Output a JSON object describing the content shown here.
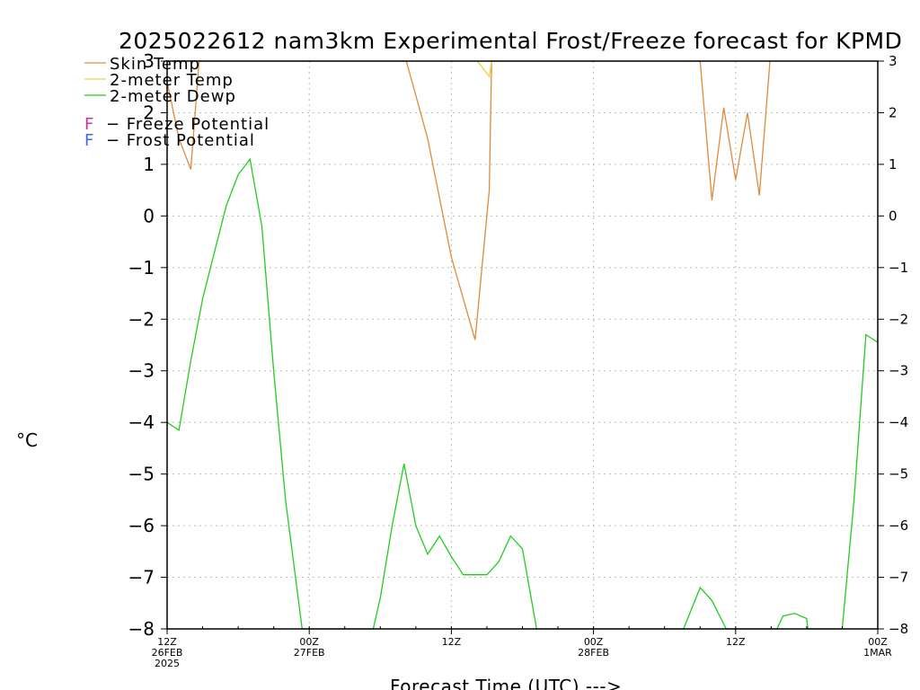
{
  "chart_data": {
    "type": "line",
    "title": "2025022612 nam3km Experimental Frost/Freeze forecast for KPMD",
    "xlabel": "Forecast Time (UTC) --->",
    "ylabel": "°C",
    "xlim": [
      0,
      60
    ],
    "ylim": [
      -8,
      3
    ],
    "yticks": [
      3,
      2,
      1,
      0,
      -1,
      -2,
      -3,
      -4,
      -5,
      -6,
      -7,
      -8
    ],
    "ytick_labels": [
      "3",
      "2",
      "1",
      "0",
      "−1",
      "−2",
      "−3",
      "−4",
      "−5",
      "−6",
      "−7",
      "−8"
    ],
    "grid": true,
    "legend_position": "top-left",
    "xticks": [
      {
        "x": 0,
        "lines": [
          "12Z",
          "26FEB",
          "2025"
        ]
      },
      {
        "x": 12,
        "lines": [
          "00Z",
          "27FEB"
        ]
      },
      {
        "x": 24,
        "lines": [
          "12Z"
        ]
      },
      {
        "x": 36,
        "lines": [
          "00Z",
          "28FEB"
        ]
      },
      {
        "x": 48,
        "lines": [
          "12Z"
        ]
      },
      {
        "x": 60,
        "lines": [
          "00Z",
          "1MAR"
        ]
      }
    ],
    "series": [
      {
        "name": "Skin Temp",
        "color": "#e08a3c",
        "points": [
          [
            0,
            2.6
          ],
          [
            1,
            1.5
          ],
          [
            2,
            0.9
          ],
          [
            2.7,
            3.0
          ],
          [
            20.2,
            3.0
          ],
          [
            22,
            1.5
          ],
          [
            24,
            -0.8
          ],
          [
            26,
            -2.4
          ],
          [
            27.2,
            0.5
          ],
          [
            27.4,
            3.0
          ],
          [
            45,
            3.0
          ],
          [
            46,
            0.3
          ],
          [
            47,
            2.1
          ],
          [
            48,
            0.7
          ],
          [
            49,
            2.0
          ],
          [
            50,
            0.4
          ],
          [
            50.9,
            3.0
          ]
        ]
      },
      {
        "name": "2-meter Temp",
        "color": "#f0d040",
        "points": [
          [
            26.2,
            3.0
          ],
          [
            27.2,
            2.7
          ],
          [
            27.4,
            3.0
          ]
        ]
      },
      {
        "name": "2-meter Dewp",
        "color": "#22cc22",
        "points": [
          [
            0,
            -4.0
          ],
          [
            1,
            -4.15
          ],
          [
            2,
            -2.8
          ],
          [
            3,
            -1.6
          ],
          [
            4,
            -0.7
          ],
          [
            5,
            0.2
          ],
          [
            6,
            0.8
          ],
          [
            7,
            1.1
          ],
          [
            8,
            -0.2
          ],
          [
            9,
            -3.0
          ],
          [
            10,
            -5.5
          ],
          [
            11.4,
            -8.0
          ],
          [
            17.4,
            -8.0
          ],
          [
            18,
            -7.4
          ],
          [
            19,
            -6.0
          ],
          [
            20,
            -4.8
          ],
          [
            21,
            -6.0
          ],
          [
            22,
            -6.55
          ],
          [
            23,
            -6.2
          ],
          [
            24,
            -6.6
          ],
          [
            25,
            -6.95
          ],
          [
            26,
            -6.95
          ],
          [
            27,
            -6.95
          ],
          [
            28,
            -6.7
          ],
          [
            29,
            -6.2
          ],
          [
            30,
            -6.45
          ],
          [
            31.2,
            -8.0
          ],
          [
            43.6,
            -8.0
          ],
          [
            45,
            -7.2
          ],
          [
            46,
            -7.45
          ],
          [
            47.2,
            -8.0
          ],
          [
            51.5,
            -8.0
          ],
          [
            52,
            -7.75
          ],
          [
            53,
            -7.7
          ],
          [
            54,
            -7.8
          ],
          [
            54.1,
            -8.0
          ],
          [
            57,
            -8.0
          ],
          [
            58,
            -5.5
          ],
          [
            59,
            -2.3
          ],
          [
            60,
            -2.45
          ]
        ]
      }
    ],
    "potential_legend": [
      {
        "symbol": "F",
        "text": "− Freeze Potential",
        "color": "#cc3399"
      },
      {
        "symbol": "F",
        "text": "− Frost Potential",
        "color": "#4466ee"
      }
    ]
  }
}
